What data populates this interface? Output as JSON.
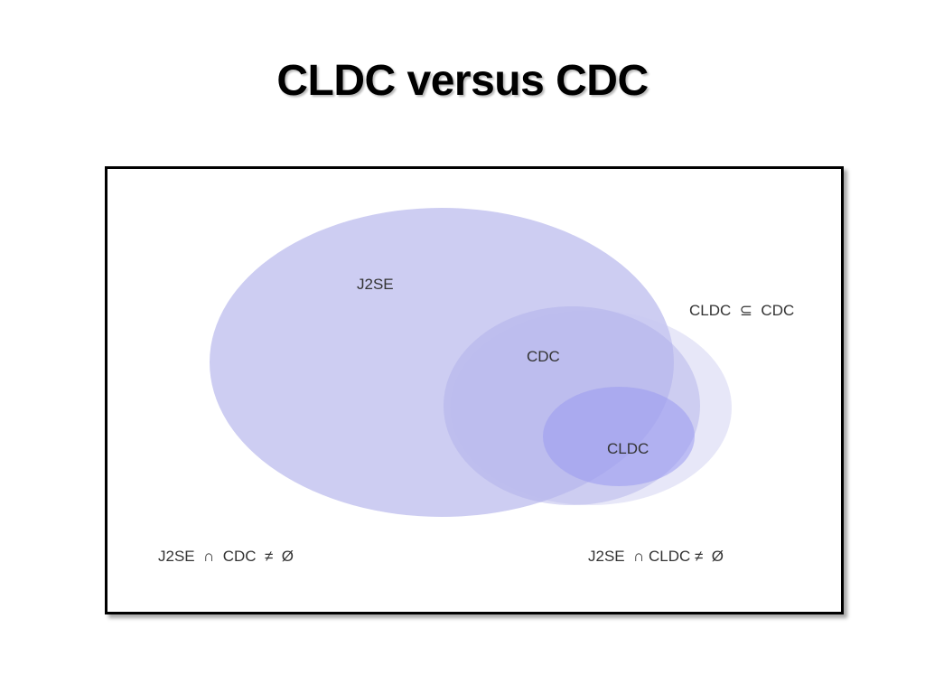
{
  "title": "CLDC versus CDC",
  "sets": {
    "j2se": {
      "label": "J2SE",
      "color": "#c6c6f0"
    },
    "cdc": {
      "label": "CDC",
      "color": "#b4b4ea"
    },
    "cldc": {
      "label": "CLDC",
      "color": "#9f9fef"
    }
  },
  "relations": {
    "subset": "CLDC  ⊆  CDC",
    "j2se_cdc": "J2SE  ∩  CDC  ≠  Ø",
    "j2se_cldc": "J2SE  ∩ CLDC ≠  Ø"
  }
}
